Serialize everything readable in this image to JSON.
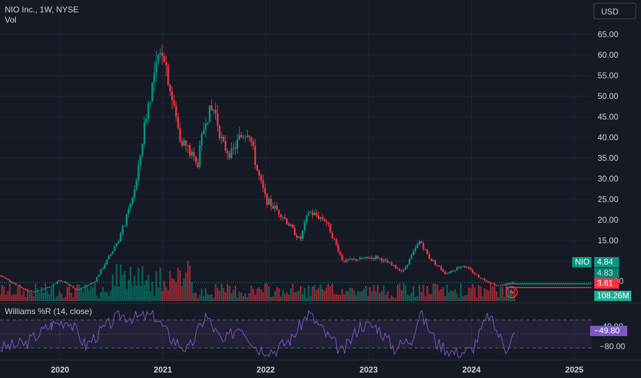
{
  "header": {
    "symbol_title": "NIO Inc., 1W, NYSE",
    "vol_label": "Vol",
    "currency": "USD"
  },
  "indicator": {
    "title": "Williams %R (14, close)",
    "value_label": "−49.80",
    "ticks": [
      "-40.00",
      "−80.00"
    ],
    "upper_band": -20,
    "lower_band": -80
  },
  "tags": {
    "ticker": "NIO",
    "price": "4.84",
    "low": "4.83",
    "close": "3.61",
    "volume": "108.26M",
    "vol_axis_partial": "0"
  },
  "price_axis": {
    "ticks": [
      "65.00",
      "60.00",
      "55.00",
      "50.00",
      "45.00",
      "40.00",
      "35.00",
      "30.00",
      "25.00",
      "20.00",
      "15.00",
      "10.00"
    ]
  },
  "time_axis": {
    "ticks": [
      "2020",
      "2021",
      "2022",
      "2023",
      "2024",
      "2025"
    ]
  },
  "colors": {
    "up": "#089981",
    "down": "#f23645",
    "wr_line": "#7e57c2",
    "background": "#161a25",
    "grid": "#232632"
  },
  "chart_data": {
    "type": "candlestick",
    "title": "NIO Inc., 1W, NYSE",
    "ylim": [
      0,
      70
    ],
    "x_range": [
      "2019-06",
      "2025-03"
    ],
    "price_series": [
      {
        "date": "2019-06",
        "value": 6.5
      },
      {
        "date": "2019-09",
        "value": 3.0
      },
      {
        "date": "2019-10",
        "value": 2.5
      },
      {
        "date": "2019-12",
        "value": 4.0
      },
      {
        "date": "2020-01",
        "value": 5.5
      },
      {
        "date": "2020-03",
        "value": 3.0
      },
      {
        "date": "2020-05",
        "value": 5.0
      },
      {
        "date": "2020-07",
        "value": 12.0
      },
      {
        "date": "2020-08",
        "value": 16.0
      },
      {
        "date": "2020-09",
        "value": 22.0
      },
      {
        "date": "2020-10",
        "value": 30.0
      },
      {
        "date": "2020-11",
        "value": 45.0
      },
      {
        "date": "2020-12",
        "value": 55.0
      },
      {
        "date": "2021-01",
        "value": 62.0
      },
      {
        "date": "2021-02",
        "value": 50.0
      },
      {
        "date": "2021-03",
        "value": 40.0
      },
      {
        "date": "2021-04",
        "value": 37.0
      },
      {
        "date": "2021-05",
        "value": 33.0
      },
      {
        "date": "2021-06",
        "value": 45.0
      },
      {
        "date": "2021-07",
        "value": 47.0
      },
      {
        "date": "2021-08",
        "value": 38.0
      },
      {
        "date": "2021-09",
        "value": 36.0
      },
      {
        "date": "2021-10",
        "value": 40.0
      },
      {
        "date": "2021-11",
        "value": 42.0
      },
      {
        "date": "2021-12",
        "value": 32.0
      },
      {
        "date": "2022-01",
        "value": 25.0
      },
      {
        "date": "2022-03",
        "value": 21.0
      },
      {
        "date": "2022-05",
        "value": 15.0
      },
      {
        "date": "2022-06",
        "value": 22.0
      },
      {
        "date": "2022-08",
        "value": 20.0
      },
      {
        "date": "2022-10",
        "value": 10.0
      },
      {
        "date": "2022-12",
        "value": 10.5
      },
      {
        "date": "2023-02",
        "value": 11.0
      },
      {
        "date": "2023-05",
        "value": 7.5
      },
      {
        "date": "2023-07",
        "value": 15.0
      },
      {
        "date": "2023-08",
        "value": 11.0
      },
      {
        "date": "2023-10",
        "value": 7.0
      },
      {
        "date": "2023-12",
        "value": 9.0
      },
      {
        "date": "2024-02",
        "value": 6.0
      },
      {
        "date": "2024-04",
        "value": 4.0
      },
      {
        "date": "2024-06",
        "value": 4.84
      }
    ],
    "last_price": 4.84,
    "low_price": 4.83,
    "close_marker": 3.61,
    "volume_last": "108.26M",
    "williams_r": [
      {
        "date": "2019-06",
        "value": -80
      },
      {
        "date": "2019-09",
        "value": -70
      },
      {
        "date": "2019-12",
        "value": -30
      },
      {
        "date": "2020-02",
        "value": -20
      },
      {
        "date": "2020-04",
        "value": -75
      },
      {
        "date": "2020-06",
        "value": -40
      },
      {
        "date": "2020-08",
        "value": -10
      },
      {
        "date": "2020-10",
        "value": -15
      },
      {
        "date": "2020-12",
        "value": -10
      },
      {
        "date": "2021-02",
        "value": -60
      },
      {
        "date": "2021-04",
        "value": -85
      },
      {
        "date": "2021-06",
        "value": -10
      },
      {
        "date": "2021-08",
        "value": -70
      },
      {
        "date": "2021-10",
        "value": -30
      },
      {
        "date": "2021-12",
        "value": -80
      },
      {
        "date": "2022-02",
        "value": -85
      },
      {
        "date": "2022-04",
        "value": -60
      },
      {
        "date": "2022-06",
        "value": -5
      },
      {
        "date": "2022-08",
        "value": -50
      },
      {
        "date": "2022-10",
        "value": -90
      },
      {
        "date": "2022-12",
        "value": -30
      },
      {
        "date": "2023-02",
        "value": -35
      },
      {
        "date": "2023-04",
        "value": -80
      },
      {
        "date": "2023-06",
        "value": -60
      },
      {
        "date": "2023-07",
        "value": -5
      },
      {
        "date": "2023-09",
        "value": -70
      },
      {
        "date": "2023-11",
        "value": -90
      },
      {
        "date": "2024-01",
        "value": -85
      },
      {
        "date": "2024-03",
        "value": -10
      },
      {
        "date": "2024-05",
        "value": -80
      },
      {
        "date": "2024-06",
        "value": -49.8
      }
    ],
    "grid": true
  }
}
